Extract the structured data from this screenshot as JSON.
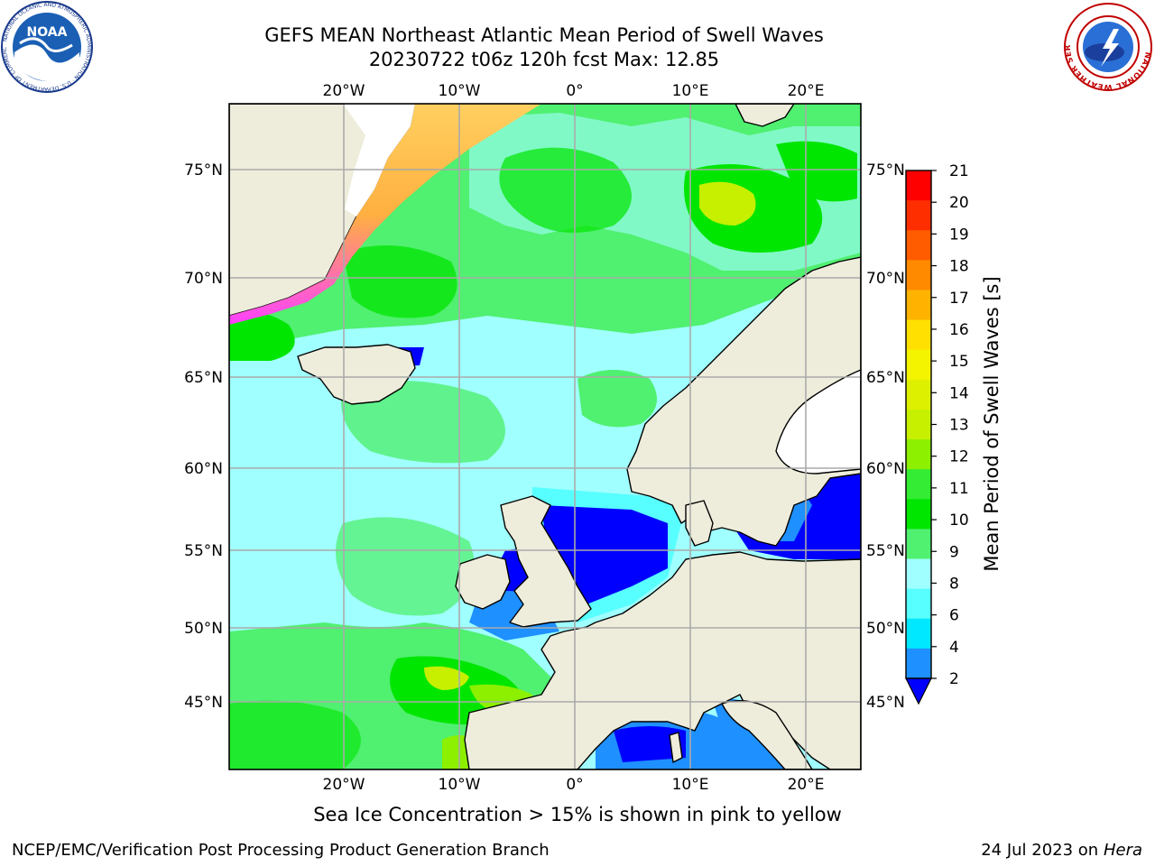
{
  "title": {
    "line1": "GEFS MEAN Northeast Atlantic Mean Period of Swell Waves",
    "line2": "20230722 t06z 120h fcst   Max: 12.85"
  },
  "map": {
    "region": "Northeast Atlantic",
    "lon_range": [
      -30,
      25
    ],
    "lat_range": [
      41,
      78
    ],
    "top_lon_labels": [
      "20°W",
      "10°W",
      "0°",
      "10°E",
      "20°E"
    ],
    "bottom_lon_labels": [
      "20°W",
      "10°W",
      "0°",
      "10°E",
      "20°E"
    ],
    "left_lat_labels": [
      "75°N",
      "70°N",
      "65°N",
      "60°N",
      "55°N",
      "50°N",
      "45°N"
    ],
    "right_lat_labels": [
      "75°N",
      "70°N",
      "65°N",
      "60°N",
      "55°N",
      "50°N",
      "45°N"
    ],
    "land_color": "#eeeddc",
    "gridline_color": "#aaaaaa"
  },
  "colorbar": {
    "label": "Mean Period of Swell Waves [s]",
    "ticks": [
      "21",
      "20",
      "19",
      "18",
      "17",
      "16",
      "15",
      "14",
      "13",
      "12",
      "11",
      "10",
      "9",
      "8",
      "6",
      "4",
      "2"
    ],
    "colors": [
      "#ff0000",
      "#ff2e00",
      "#ff5c00",
      "#ff8a00",
      "#ffb200",
      "#ffe000",
      "#f4f400",
      "#ddf000",
      "#c6f000",
      "#8cf000",
      "#34ec34",
      "#00e600",
      "#50f070",
      "#a0ffff",
      "#58ffff",
      "#00e8ff",
      "#1e90ff"
    ],
    "under_color": "#0000ff"
  },
  "caption": "Sea Ice Concentration > 15% is shown in pink to yellow",
  "footer": {
    "left": "NCEP/EMC/Verification Post Processing Product Generation Branch",
    "date": "24 Jul 2023 on ",
    "machine": "Hera"
  },
  "logos": {
    "left_icon": "noaa-logo",
    "left_text": "NOAA",
    "right_icon": "national-weather-service-logo",
    "right_text": "NATIONAL WEATHER SERVICE"
  }
}
